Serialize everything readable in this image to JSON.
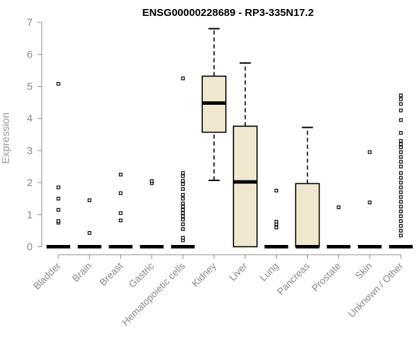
{
  "chart_data": {
    "type": "box",
    "title": "ENSG00000228689 - RP3-335N17.2",
    "ylabel": "Expression",
    "xlabel": "",
    "ylim": [
      0,
      7
    ],
    "yticks": [
      0,
      1,
      2,
      3,
      4,
      5,
      6,
      7
    ],
    "grid": false,
    "colors": {
      "box_fill": "#efe8cf",
      "stroke": "#000000",
      "axis": "#888888"
    },
    "categories": [
      "Bladder",
      "Brain",
      "Breast",
      "Gastric",
      "Hematopoietic cells",
      "Kidney",
      "Liver",
      "Lung",
      "Pancreas",
      "Prostate",
      "Skin",
      "Unknown / Other"
    ],
    "boxes": [
      {
        "category": "Bladder",
        "min": 0,
        "q1": 0,
        "median": 0,
        "q3": 0,
        "max": 0,
        "outliers": [
          0.75,
          0.8,
          1.15,
          1.5,
          1.85,
          5.08
        ]
      },
      {
        "category": "Brain",
        "min": 0,
        "q1": 0,
        "median": 0,
        "q3": 0,
        "max": 0,
        "outliers": [
          0.43,
          1.45
        ]
      },
      {
        "category": "Breast",
        "min": 0,
        "q1": 0,
        "median": 0,
        "q3": 0,
        "max": 0,
        "outliers": [
          0.82,
          1.05,
          1.67,
          2.25
        ]
      },
      {
        "category": "Gastric",
        "min": 0,
        "q1": 0,
        "median": 0,
        "q3": 0,
        "max": 0,
        "outliers": [
          1.98,
          2.05
        ]
      },
      {
        "category": "Hematopoietic cells",
        "min": 0,
        "q1": 0,
        "median": 0,
        "q3": 0,
        "max": 0,
        "outliers": [
          0.2,
          0.28,
          0.55,
          0.7,
          0.85,
          0.95,
          1.05,
          1.15,
          1.25,
          1.35,
          1.5,
          1.62,
          1.8,
          1.95,
          2.05,
          2.2,
          2.3,
          5.25
        ]
      },
      {
        "category": "Kidney",
        "min": 2.07,
        "q1": 3.57,
        "median": 4.48,
        "q3": 5.32,
        "max": 6.8,
        "outliers": []
      },
      {
        "category": "Liver",
        "min": 0,
        "q1": 0,
        "median": 2.02,
        "q3": 3.76,
        "max": 5.73,
        "outliers": []
      },
      {
        "category": "Lung",
        "min": 0,
        "q1": 0,
        "median": 0,
        "q3": 0,
        "max": 0,
        "outliers": [
          0.6,
          0.7,
          0.78,
          1.75
        ]
      },
      {
        "category": "Pancreas",
        "min": 0,
        "q1": 0,
        "median": 0,
        "q3": 1.97,
        "max": 3.72,
        "outliers": []
      },
      {
        "category": "Prostate",
        "min": 0,
        "q1": 0,
        "median": 0,
        "q3": 0,
        "max": 0,
        "outliers": [
          1.23
        ]
      },
      {
        "category": "Skin",
        "min": 0,
        "q1": 0,
        "median": 0,
        "q3": 0,
        "max": 0,
        "outliers": [
          1.38,
          2.95
        ]
      },
      {
        "category": "Unknown / Other",
        "min": 0,
        "q1": 0,
        "median": 0,
        "q3": 0,
        "max": 0,
        "outliers": [
          0.35,
          0.5,
          0.65,
          0.8,
          0.95,
          1.1,
          1.25,
          1.4,
          1.55,
          1.7,
          1.85,
          2.0,
          2.15,
          2.3,
          2.5,
          2.65,
          2.8,
          2.95,
          3.1,
          3.2,
          3.3,
          3.55,
          3.95,
          4.25,
          4.45,
          4.6,
          4.72
        ]
      }
    ]
  }
}
